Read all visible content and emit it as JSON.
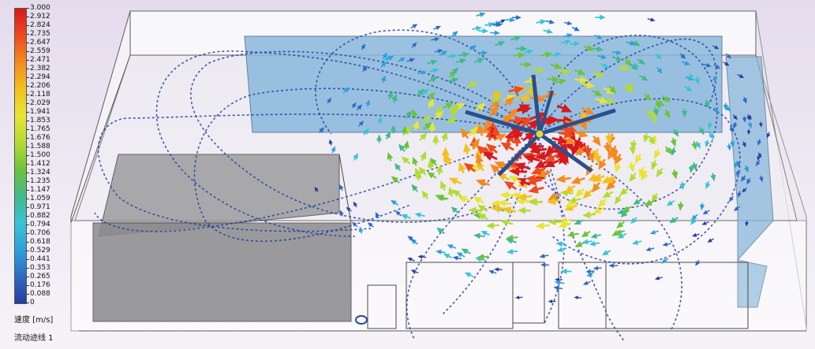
{
  "legend": {
    "title": "速度 [m/s]",
    "subtitle": "流动迹线 1",
    "ticks": [
      "3.000",
      "2.912",
      "2.824",
      "2.735",
      "2.647",
      "2.559",
      "2.471",
      "2.382",
      "2.294",
      "2.206",
      "2.118",
      "2.029",
      "1.941",
      "1.853",
      "1.765",
      "1.676",
      "1.588",
      "1.500",
      "1.412",
      "1.324",
      "1.235",
      "1.147",
      "1.059",
      "0.971",
      "0.882",
      "0.794",
      "0.706",
      "0.618",
      "0.529",
      "0.441",
      "0.353",
      "0.265",
      "0.176",
      "0.088",
      "0"
    ],
    "colormap": [
      "#d7191c",
      "#ee4a1f",
      "#f48a20",
      "#f3c11e",
      "#e7e635",
      "#b3dc33",
      "#6cc43c",
      "#42b98b",
      "#3cc3d6",
      "#2f9fdc",
      "#2d6bc4",
      "#263e9c"
    ]
  },
  "scene": {
    "colors": {
      "wall": "#ffffff",
      "floor_panel": "#8e8e90",
      "window_panel": "#89b7db",
      "edge": "#505050",
      "fan": "#2b4f8d",
      "fan_hub": "#e5d633"
    }
  }
}
